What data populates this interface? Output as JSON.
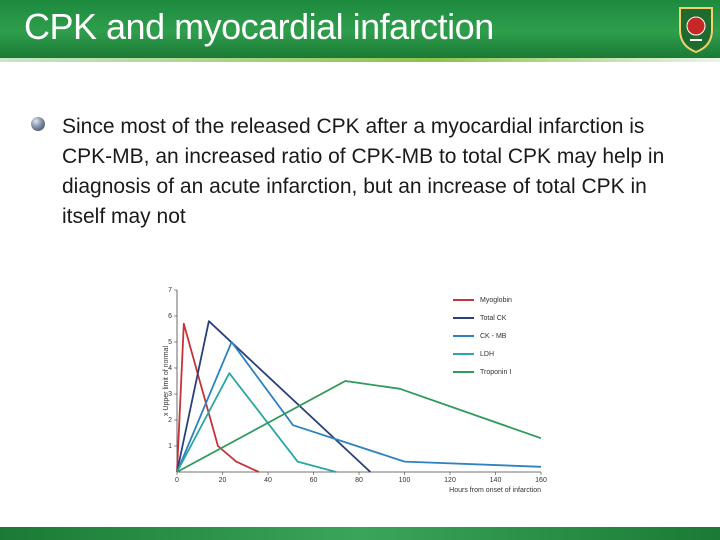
{
  "slide": {
    "title": "CPK and myocardial infarction",
    "bullet": "Since most of the released CPK after a myocardial infarction is CPK-MB, an increased ratio of CPK-MB to total CPK may help in diagnosis of an acute infarction, but an increase of total CPK in itself may not"
  },
  "chart_data": {
    "type": "line",
    "x_label": "Hours from onset of infarction",
    "y_label": "x Upper limit of normal",
    "xlim": [
      0,
      160
    ],
    "xticks": [
      0,
      20,
      40,
      60,
      80,
      100,
      120,
      140,
      160
    ],
    "ylim": [
      0,
      7
    ],
    "yticks": [
      1,
      2,
      3,
      4,
      5,
      6,
      7
    ],
    "series": [
      {
        "name": "Myoglobin",
        "color": "#c8323a",
        "x": [
          0,
          3,
          10,
          18,
          26,
          36
        ],
        "values": [
          0,
          5.7,
          3.5,
          1,
          0.4,
          0
        ]
      },
      {
        "name": "Total CK",
        "color": "#2b3f7a",
        "x": [
          0,
          14,
          85
        ],
        "values": [
          0,
          5.8,
          0
        ]
      },
      {
        "name": "CK - MB",
        "color": "#2f82c0",
        "x": [
          0,
          24,
          51,
          100,
          160
        ],
        "values": [
          0,
          5,
          1.8,
          0.4,
          0.2
        ]
      },
      {
        "name": "LDH",
        "color": "#2aa6a6",
        "x": [
          0,
          23,
          53,
          70
        ],
        "values": [
          0,
          3.8,
          0.4,
          0
        ]
      },
      {
        "name": "Troponin I",
        "color": "#2f9a5a",
        "x": [
          0,
          74,
          98,
          160
        ],
        "values": [
          0,
          3.5,
          3.2,
          1.3
        ]
      }
    ]
  }
}
